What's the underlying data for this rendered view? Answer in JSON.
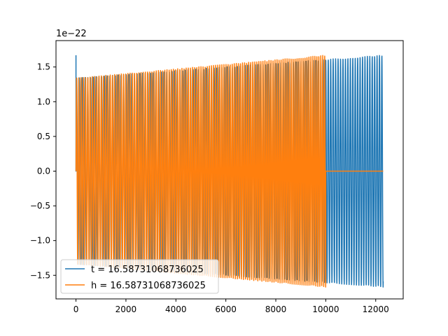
{
  "chart_data": {
    "type": "line",
    "title": "",
    "xlabel": "",
    "ylabel": "",
    "y_offset_label": "1e−22",
    "xlim": [
      -800,
      13100
    ],
    "ylim": [
      -1.84,
      1.88
    ],
    "y_scale_note": "values in units of 1e-22",
    "xticks": [
      0,
      2000,
      4000,
      6000,
      8000,
      10000,
      12000
    ],
    "xtick_labels": [
      "0",
      "2000",
      "4000",
      "6000",
      "8000",
      "10000",
      "12000"
    ],
    "yticks": [
      -1.5,
      -1.0,
      -0.5,
      0.0,
      0.5,
      1.0,
      1.5
    ],
    "ytick_labels": [
      "−1.5",
      "−1.0",
      "−0.5",
      "0.0",
      "0.5",
      "1.0",
      "1.5"
    ],
    "grid": false,
    "legend_position": "lower-left",
    "series": [
      {
        "name": "t = 16.58731068736025",
        "color": "#1f77b4",
        "x_start": 0,
        "x_end": 12300,
        "cycles": 110,
        "amp_start": 1.34,
        "amp_end": 1.67,
        "spike_at_start": 1.67
      },
      {
        "name": "h = 16.58731068736025",
        "color": "#ff7f0e",
        "x_start": 0,
        "x_end": 10000,
        "cycles": 110,
        "amp_start": 1.34,
        "amp_end": 1.67,
        "flat_after_x": 10000,
        "flat_until_x": 12300,
        "flat_value": 0
      }
    ]
  }
}
